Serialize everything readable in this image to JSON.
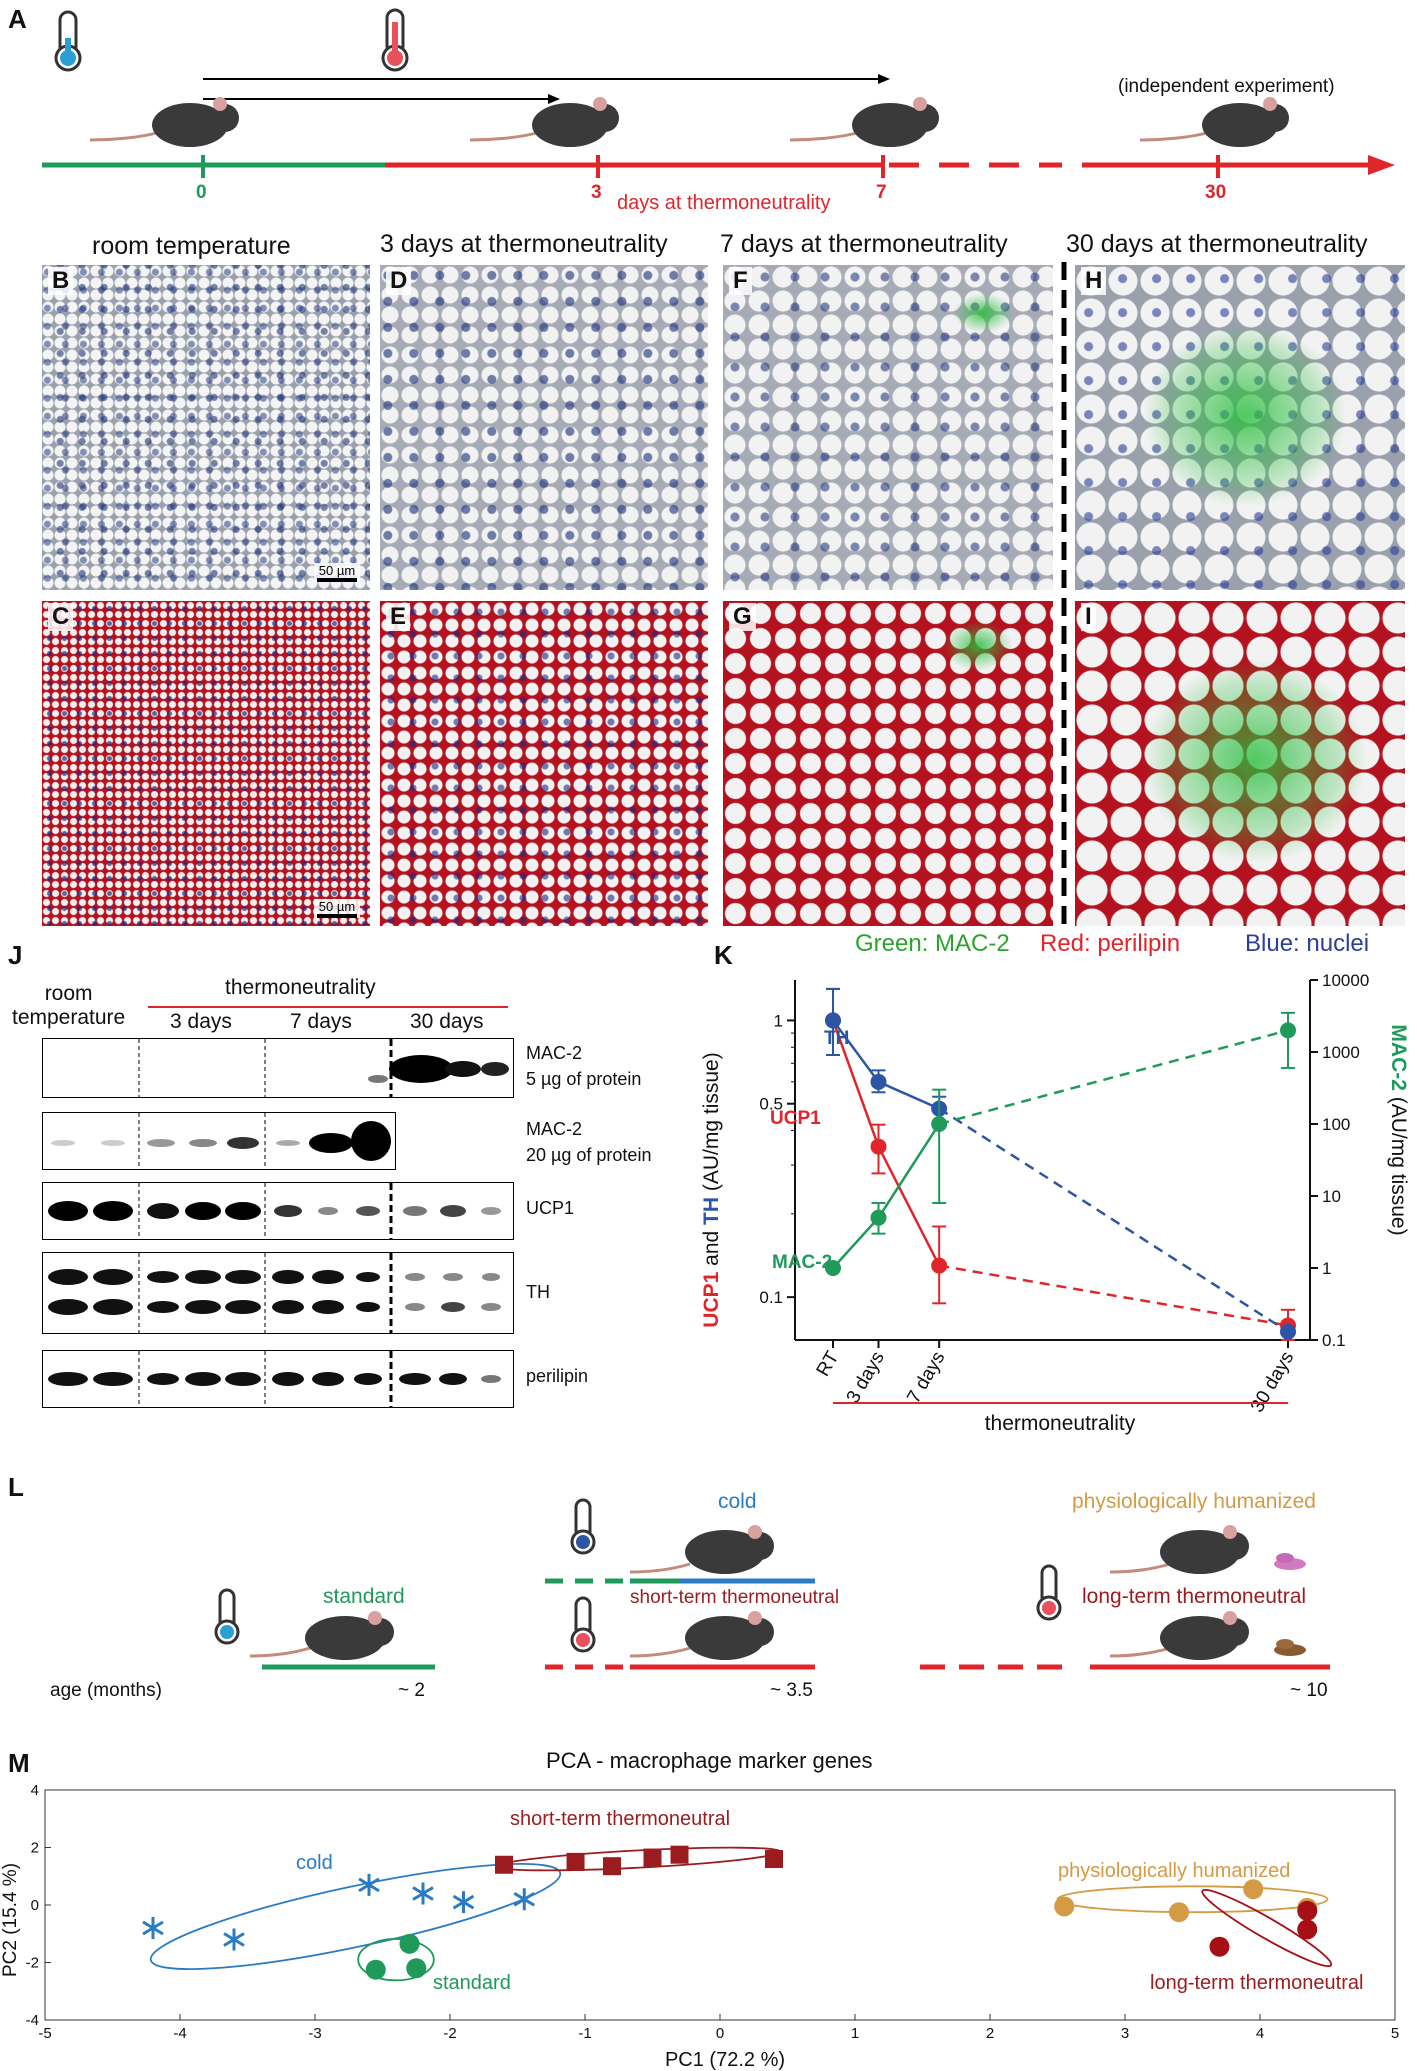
{
  "panel_letters": {
    "A": "A",
    "B": "B",
    "C": "C",
    "D": "D",
    "E": "E",
    "F": "F",
    "G": "G",
    "H": "H",
    "I": "I",
    "J": "J",
    "K": "K",
    "L": "L",
    "M": "M"
  },
  "timeline": {
    "annotation": "(independent experiment)",
    "ticks": [
      "0",
      "3",
      "7",
      "30"
    ],
    "axis_label": "days at thermoneutrality",
    "colors": {
      "green": "#1f9a5b",
      "red": "#e0252b"
    }
  },
  "micro": {
    "headings": [
      "room temperature",
      "3 days at thermoneutrality",
      "7 days at thermoneutrality",
      "30 days at thermoneutrality"
    ],
    "scale_label": "50 µm",
    "legend": {
      "green": "Green: MAC-2",
      "red": "Red: perilipin",
      "blue": "Blue: nuclei"
    }
  },
  "blot": {
    "header_room": "room\ntemperature",
    "header_thermo": "thermoneutrality",
    "groups": [
      "3 days",
      "7 days",
      "30 days"
    ],
    "rows": [
      {
        "label1": "MAC-2",
        "label2": "5 µg of protein"
      },
      {
        "label1": "MAC-2",
        "label2": "20 µg of protein"
      },
      {
        "label1": "UCP1",
        "label2": ""
      },
      {
        "label1": "TH",
        "label2": ""
      },
      {
        "label1": "perilipin",
        "label2": ""
      }
    ]
  },
  "chartK": {
    "series_labels": {
      "TH": "TH",
      "UCP1": "UCP1",
      "MAC2": "MAC-2"
    },
    "left_axis_parts": [
      "UCP1",
      " and ",
      "TH",
      " (AU/mg tissue)"
    ],
    "right_axis_parts": [
      "MAC-2",
      " (AU/mg tissue)"
    ],
    "x_ticks": [
      "RT",
      "3 days",
      "7 days",
      "30 days"
    ],
    "left_ticks": [
      "1",
      "0.5",
      "0.1"
    ],
    "right_ticks": [
      "10000",
      "1000",
      "100",
      "10",
      "1",
      "0.1"
    ],
    "bottom_label": "thermoneutrality"
  },
  "chart_data": [
    {
      "type": "line",
      "panel": "K",
      "x": [
        "RT",
        "3 days",
        "7 days",
        "30 days"
      ],
      "x_values_days": [
        0,
        3,
        7,
        30
      ],
      "yscale": "log",
      "series": [
        {
          "name": "UCP1",
          "axis": "left",
          "color": "#e0252b",
          "values": [
            1.0,
            0.35,
            0.13,
            0.079
          ],
          "err": [
            [
              0.75,
              1.3
            ],
            [
              0.28,
              0.42
            ],
            [
              0.095,
              0.18
            ],
            [
              0.07,
              0.09
            ]
          ]
        },
        {
          "name": "TH",
          "axis": "left",
          "color": "#2c55a5",
          "values": [
            1.0,
            0.6,
            0.48,
            0.075
          ],
          "err": [
            [
              0.75,
              1.3
            ],
            [
              0.55,
              0.66
            ],
            [
              0.43,
              0.53
            ],
            [
              0.073,
              0.077
            ]
          ]
        },
        {
          "name": "MAC-2",
          "axis": "right",
          "color": "#1f9a5b",
          "values": [
            1,
            5,
            100,
            2000
          ],
          "err": [
            [
              1,
              1
            ],
            [
              3,
              8
            ],
            [
              8,
              300
            ],
            [
              600,
              3500
            ]
          ]
        }
      ],
      "left_ylim": [
        0.07,
        1.4
      ],
      "right_ylim": [
        0.1,
        10000
      ],
      "ylabel_left": "UCP1 and TH (AU/mg tissue)",
      "ylabel_right": "MAC-2 (AU/mg tissue)",
      "xlabel": "thermoneutrality"
    },
    {
      "type": "scatter",
      "panel": "M",
      "title": "PCA - macrophage marker genes",
      "xlabel": "PC1 (72.2 %)",
      "ylabel": "PC2 (15.4 %)",
      "xlim": [
        -5,
        5
      ],
      "ylim": [
        -4,
        4
      ],
      "x_ticks": [
        -5,
        -4,
        -3,
        -2,
        -1,
        0,
        1,
        2,
        3,
        4,
        5
      ],
      "y_ticks": [
        -4,
        -2,
        0,
        2,
        4
      ],
      "series": [
        {
          "name": "cold",
          "color": "#2a7bc4",
          "marker": "asterisk",
          "points": [
            [
              -4.2,
              -0.8
            ],
            [
              -3.6,
              -1.2
            ],
            [
              -2.6,
              0.7
            ],
            [
              -2.2,
              0.4
            ],
            [
              -1.9,
              0.1
            ],
            [
              -1.45,
              0.2
            ]
          ],
          "ellipse": {
            "cx": -2.7,
            "cy": -0.4,
            "rx": 1.55,
            "ry": 1.05,
            "rot": 12
          }
        },
        {
          "name": "standard",
          "color": "#1f9a5b",
          "marker": "circle",
          "points": [
            [
              -2.3,
              -1.35
            ],
            [
              -2.55,
              -2.25
            ],
            [
              -2.25,
              -2.2
            ]
          ],
          "ellipse": {
            "cx": -2.4,
            "cy": -1.9,
            "rx": 0.28,
            "ry": 0.72,
            "rot": 0
          }
        },
        {
          "name": "short-term thermoneutral",
          "color": "#9b1c1f",
          "marker": "square",
          "points": [
            [
              -1.6,
              1.4
            ],
            [
              -1.07,
              1.5
            ],
            [
              -0.8,
              1.35
            ],
            [
              -0.5,
              1.65
            ],
            [
              -0.3,
              1.75
            ],
            [
              0.4,
              1.6
            ]
          ],
          "ellipse": {
            "cx": -0.6,
            "cy": 1.6,
            "rx": 1.05,
            "ry": 0.3,
            "rot": 3
          }
        },
        {
          "name": "physiologically humanized",
          "color": "#d49a44",
          "marker": "circle",
          "points": [
            [
              2.55,
              -0.05
            ],
            [
              3.4,
              -0.25
            ],
            [
              3.95,
              0.55
            ],
            [
              4.35,
              -0.1
            ]
          ],
          "ellipse": {
            "cx": 3.5,
            "cy": 0.2,
            "rx": 1.0,
            "ry": 0.45,
            "rot": 0
          }
        },
        {
          "name": "long-term thermoneutral",
          "color": "#a50f15",
          "marker": "circle",
          "points": [
            [
              3.7,
              -1.45
            ],
            [
              4.35,
              -0.2
            ],
            [
              4.35,
              -0.85
            ]
          ],
          "ellipse": {
            "cx": 4.05,
            "cy": -0.8,
            "rx": 0.55,
            "ry": 0.35,
            "rot": -30
          }
        }
      ]
    }
  ],
  "panelL": {
    "groups": [
      {
        "label": "standard",
        "color": "#1f9a5b",
        "age": "~ 2"
      },
      {
        "label": "cold",
        "color": "#2a7bc4",
        "age": ""
      },
      {
        "label": "short-term thermoneutral",
        "color": "#9b1c1f",
        "age": "~ 3.5"
      },
      {
        "label": "physiologically humanized",
        "color": "#d49a44",
        "age": ""
      },
      {
        "label": "long-term thermoneutral",
        "color": "#9b1c1f",
        "age": "~ 10"
      }
    ],
    "age_label": "age (months)"
  },
  "pca": {
    "title": "PCA - macrophage marker genes",
    "xlabel": "PC1 (72.2 %)",
    "ylabel": "PC2 (15.4 %)"
  }
}
